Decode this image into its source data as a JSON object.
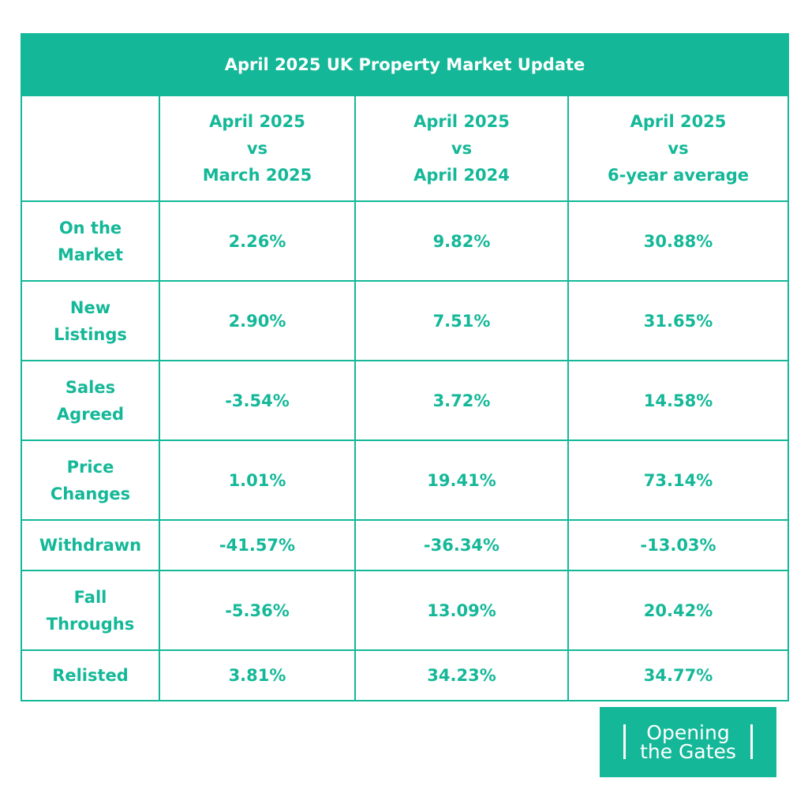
{
  "colors": {
    "accent": "#14b898",
    "background": "#ffffff",
    "header_text": "#ffffff"
  },
  "table": {
    "title": "April 2025 UK Property Market Update",
    "columns": [
      [
        "April 2025",
        "vs",
        "March 2025"
      ],
      [
        "April 2025",
        "vs",
        "April 2024"
      ],
      [
        "April 2025",
        "vs",
        "6-year average"
      ]
    ],
    "rows": [
      {
        "label": [
          "On the",
          "Market"
        ],
        "values": [
          "2.26%",
          "9.82%",
          "30.88%"
        ]
      },
      {
        "label": [
          "New",
          "Listings"
        ],
        "values": [
          "2.90%",
          "7.51%",
          "31.65%"
        ]
      },
      {
        "label": [
          "Sales",
          "Agreed"
        ],
        "values": [
          "-3.54%",
          "3.72%",
          "14.58%"
        ]
      },
      {
        "label": [
          "Price",
          "Changes"
        ],
        "values": [
          "1.01%",
          "19.41%",
          "73.14%"
        ]
      },
      {
        "label": [
          "Withdrawn"
        ],
        "values": [
          "-41.57%",
          "-36.34%",
          "-13.03%"
        ]
      },
      {
        "label": [
          "Fall",
          "Throughs"
        ],
        "values": [
          "-5.36%",
          "13.09%",
          "20.42%"
        ]
      },
      {
        "label": [
          "Relisted"
        ],
        "values": [
          "3.81%",
          "34.23%",
          "34.77%"
        ]
      }
    ]
  },
  "chart_data": {
    "type": "table",
    "title": "April 2025 UK Property Market Update",
    "columns": [
      "April 2025 vs March 2025",
      "April 2025 vs April 2024",
      "April 2025 vs 6-year average"
    ],
    "rows": [
      "On the Market",
      "New Listings",
      "Sales Agreed",
      "Price Changes",
      "Withdrawn",
      "Fall Throughs",
      "Relisted"
    ],
    "values": [
      [
        2.26,
        9.82,
        30.88
      ],
      [
        2.9,
        7.51,
        31.65
      ],
      [
        -3.54,
        3.72,
        14.58
      ],
      [
        1.01,
        19.41,
        73.14
      ],
      [
        -41.57,
        -36.34,
        -13.03
      ],
      [
        -5.36,
        13.09,
        20.42
      ],
      [
        3.81,
        34.23,
        34.77
      ]
    ]
  },
  "logo": {
    "line1": "Opening",
    "line2": "the Gates"
  }
}
